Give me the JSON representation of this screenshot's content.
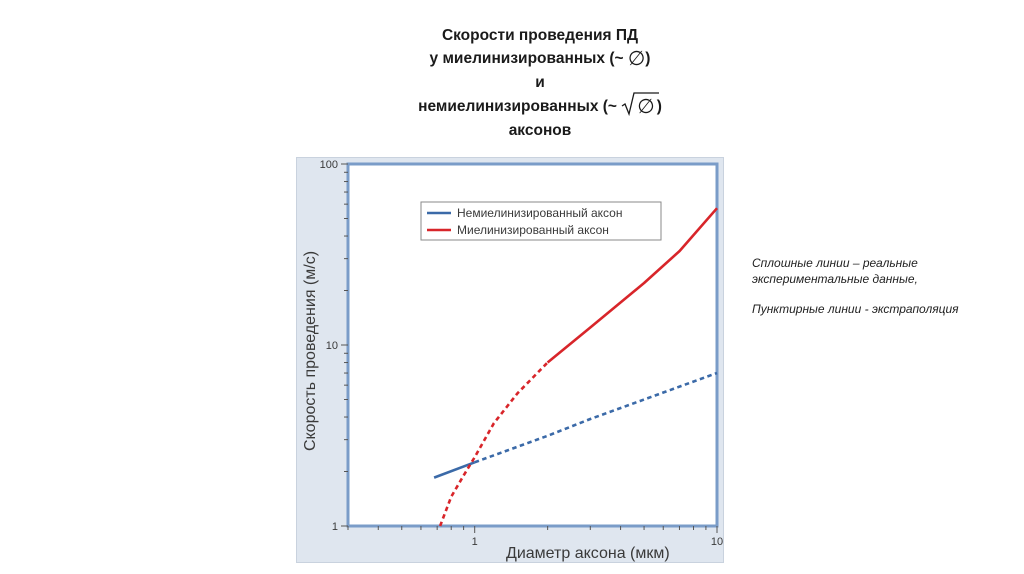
{
  "title": {
    "line1": "Скорости проведения ПД",
    "line2_prefix": "у миелинизированных (~ ",
    "line2_symbol": "∅",
    "line2_suffix": ")",
    "line3": "и",
    "line4_prefix": "немиелинизированных (~ ",
    "line4_symbol": "∅",
    "line4_suffix": ")",
    "line5": "аксонов"
  },
  "notes": {
    "solid": "Сплошные линии – реальные экспериментальные данные,",
    "dashed": "Пунктирные линии - экстраполяция"
  },
  "colors": {
    "unmyelinated": "#3b6aa8",
    "myelinated": "#d8252a",
    "frame_bg": "#dfe6ef",
    "plot_bg": "#ffffff",
    "plot_border": "#7a9cc8",
    "axis_text": "#3a3a3a"
  },
  "chart_data": {
    "type": "line",
    "xscale": "log",
    "yscale": "log",
    "xlim": [
      0.3,
      10
    ],
    "ylim": [
      1,
      100
    ],
    "xticks": [
      {
        "value": 1,
        "label": "1"
      },
      {
        "value": 10,
        "label": "10"
      }
    ],
    "yticks": [
      {
        "value": 1,
        "label": "1"
      },
      {
        "value": 10,
        "label": "10"
      },
      {
        "value": 100,
        "label": "100"
      }
    ],
    "xlabel": "Диаметр аксона (мкм)",
    "ylabel": "Скорость проведения (м/с)",
    "grid": false,
    "legend_position": "top-right",
    "series": [
      {
        "name": "Немиелинизированный аксон",
        "color": "#3b6aa8",
        "segments": [
          {
            "style": "solid",
            "x": [
              0.68,
              1.0
            ],
            "y": [
              1.85,
              2.25
            ]
          },
          {
            "style": "dashed",
            "x": [
              1.0,
              2.0,
              3.0,
              5.0,
              10.0
            ],
            "y": [
              2.25,
              3.15,
              3.9,
              5.0,
              7.0
            ]
          }
        ]
      },
      {
        "name": "Миелинизированный аксон",
        "color": "#d8252a",
        "segments": [
          {
            "style": "dashed",
            "x": [
              0.72,
              0.8,
              0.9,
              1.0,
              1.2,
              1.5,
              2.0
            ],
            "y": [
              1.0,
              1.45,
              1.9,
              2.4,
              3.7,
              5.4,
              8.0
            ]
          },
          {
            "style": "solid",
            "x": [
              2.0,
              3.0,
              5.0,
              7.0,
              10.0
            ],
            "y": [
              8.0,
              12.5,
              22.0,
              33.0,
              57.0
            ]
          }
        ]
      }
    ]
  }
}
